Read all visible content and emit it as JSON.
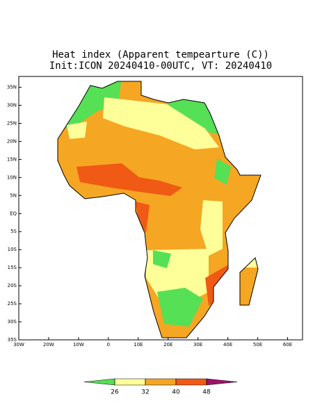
{
  "map": {
    "title": "Heat index (Apparent tempearture (C))",
    "subtitle": "Init:ICON 20240410-00UTC, VT: 20240410",
    "xlim": [
      -30,
      65
    ],
    "ylim": [
      -35,
      38
    ],
    "lon_ticks": [
      {
        "value": -30,
        "label": "30W"
      },
      {
        "value": -20,
        "label": "20W"
      },
      {
        "value": -10,
        "label": "10W"
      },
      0,
      {
        "value": 10,
        "label": "10E"
      },
      {
        "value": 20,
        "label": "20E"
      },
      {
        "value": 30,
        "label": "30E"
      },
      {
        "value": 40,
        "label": "40E"
      },
      {
        "value": 50,
        "label": "50E"
      },
      {
        "value": 60,
        "label": "60E"
      }
    ],
    "lat_ticks": [
      {
        "value": 35,
        "label": "35N"
      },
      {
        "value": 30,
        "label": "30N"
      },
      {
        "value": 25,
        "label": "25N"
      },
      {
        "value": 20,
        "label": "20N"
      },
      {
        "value": 15,
        "label": "15N"
      },
      {
        "value": 10,
        "label": "10N"
      },
      {
        "value": 5,
        "label": "5N"
      },
      {
        "value": 0,
        "label": "EQ"
      },
      {
        "value": -5,
        "label": "5S"
      },
      {
        "value": -10,
        "label": "10S"
      },
      {
        "value": -15,
        "label": "15S"
      },
      {
        "value": -20,
        "label": "20S"
      },
      {
        "value": -25,
        "label": "25S"
      },
      {
        "value": -30,
        "label": "30S"
      },
      {
        "value": -35,
        "label": "35S"
      }
    ],
    "colorbar": {
      "ticks": [
        26,
        32,
        40,
        48
      ],
      "colors": [
        "#55e055",
        "#ffff99",
        "#f5a623",
        "#f05a14",
        "#a0106a"
      ]
    }
  }
}
